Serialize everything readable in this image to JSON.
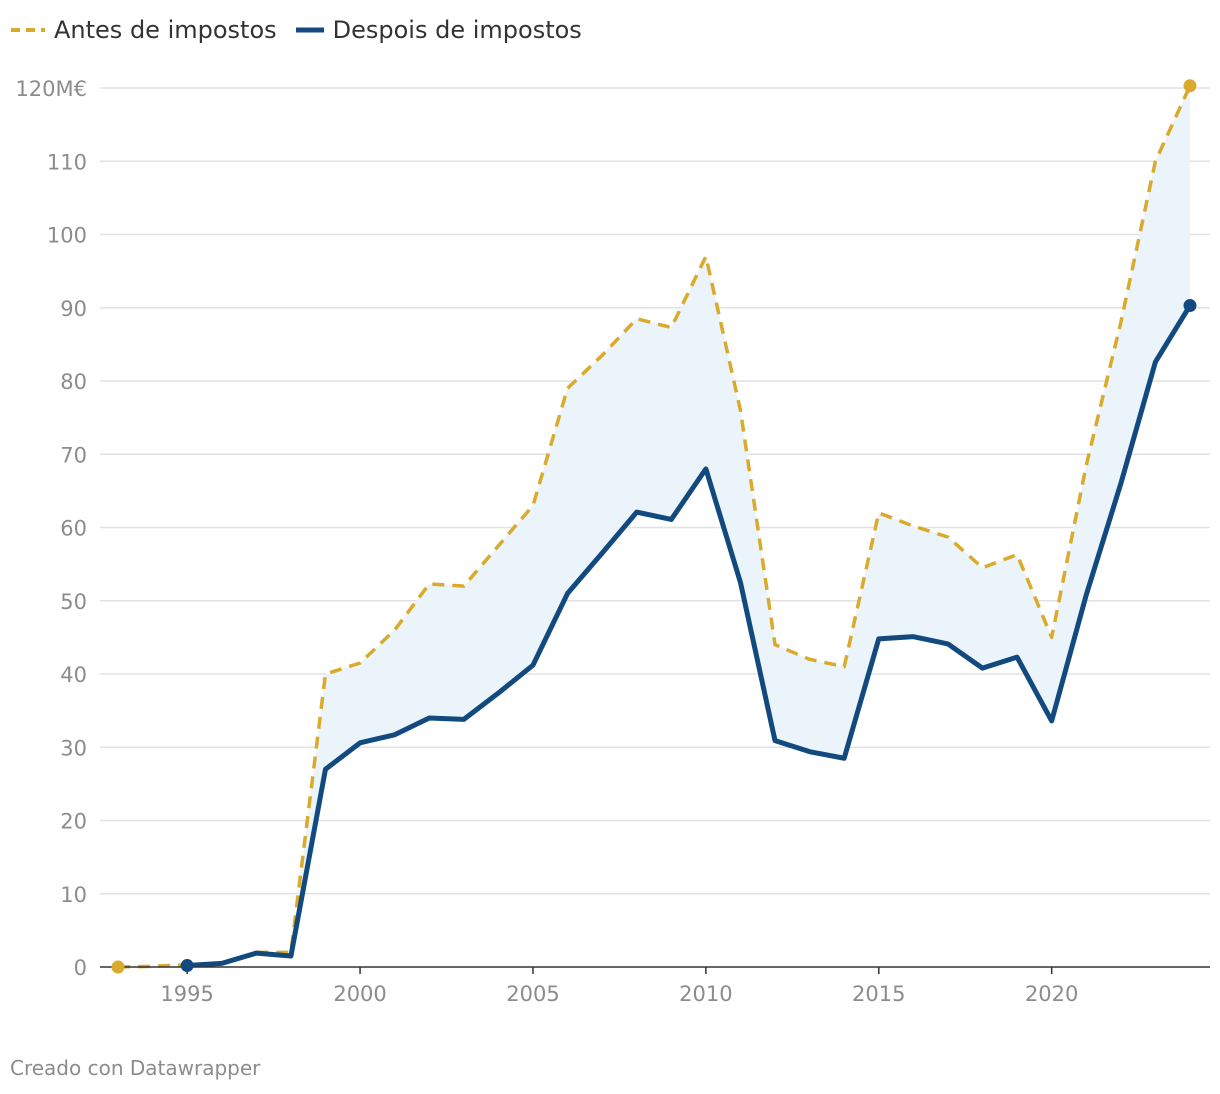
{
  "chart_data": {
    "type": "line",
    "title": "",
    "xlabel": "",
    "ylabel": "",
    "y_unit_label": "120M€",
    "ylim": [
      0,
      120
    ],
    "xlim": [
      1993,
      2024
    ],
    "y_ticks": [
      0,
      10,
      20,
      30,
      40,
      50,
      60,
      70,
      80,
      90,
      100,
      110,
      120
    ],
    "x_ticks": [
      1995,
      2000,
      2005,
      2010,
      2015,
      2020
    ],
    "grid": true,
    "legend_position": "top-left",
    "fill_between_series": true,
    "series": [
      {
        "name": "Antes de impostos",
        "color": "#d9aa2b",
        "style": "dashed",
        "points": [
          [
            1993,
            0
          ],
          [
            1994,
            0.1
          ],
          [
            1995,
            0.3
          ],
          [
            1996,
            0.5
          ],
          [
            1997,
            2
          ],
          [
            1998,
            2
          ],
          [
            1999,
            40
          ],
          [
            2000,
            41.5
          ],
          [
            2001,
            46
          ],
          [
            2002,
            52.3
          ],
          [
            2003,
            52
          ],
          [
            2004,
            57.5
          ],
          [
            2005,
            63
          ],
          [
            2006,
            79
          ],
          [
            2007,
            83.5
          ],
          [
            2008,
            88.5
          ],
          [
            2009,
            87.3
          ],
          [
            2010,
            97
          ],
          [
            2011,
            76
          ],
          [
            2012,
            44
          ],
          [
            2013,
            42
          ],
          [
            2014,
            41
          ],
          [
            2015,
            62
          ],
          [
            2016,
            60.2
          ],
          [
            2017,
            58.7
          ],
          [
            2018,
            54.5
          ],
          [
            2019,
            56.3
          ],
          [
            2020,
            45
          ],
          [
            2021,
            68.5
          ],
          [
            2022,
            88
          ],
          [
            2023,
            110
          ],
          [
            2024,
            120.3
          ]
        ]
      },
      {
        "name": "Despois de impostos",
        "color": "#124a80",
        "style": "solid",
        "points": [
          [
            1995,
            0.2
          ],
          [
            1996,
            0.5
          ],
          [
            1997,
            1.9
          ],
          [
            1998,
            1.5
          ],
          [
            1999,
            27
          ],
          [
            2000,
            30.6
          ],
          [
            2001,
            31.7
          ],
          [
            2002,
            34
          ],
          [
            2003,
            33.8
          ],
          [
            2004,
            37.4
          ],
          [
            2005,
            41.2
          ],
          [
            2006,
            51
          ],
          [
            2007,
            56.5
          ],
          [
            2008,
            62.1
          ],
          [
            2009,
            61.1
          ],
          [
            2010,
            68
          ],
          [
            2011,
            52.5
          ],
          [
            2012,
            30.9
          ],
          [
            2013,
            29.4
          ],
          [
            2014,
            28.5
          ],
          [
            2015,
            44.8
          ],
          [
            2016,
            45.1
          ],
          [
            2017,
            44.1
          ],
          [
            2018,
            40.8
          ],
          [
            2019,
            42.3
          ],
          [
            2020,
            33.6
          ],
          [
            2021,
            50.8
          ],
          [
            2022,
            66
          ],
          [
            2023,
            82.6
          ],
          [
            2024,
            90.3
          ]
        ]
      }
    ]
  },
  "footer": {
    "credit": "Creado con Datawrapper"
  },
  "colors": {
    "fill": "#eaf4fa",
    "grid": "#e2e2e2",
    "axis": "#333333"
  }
}
